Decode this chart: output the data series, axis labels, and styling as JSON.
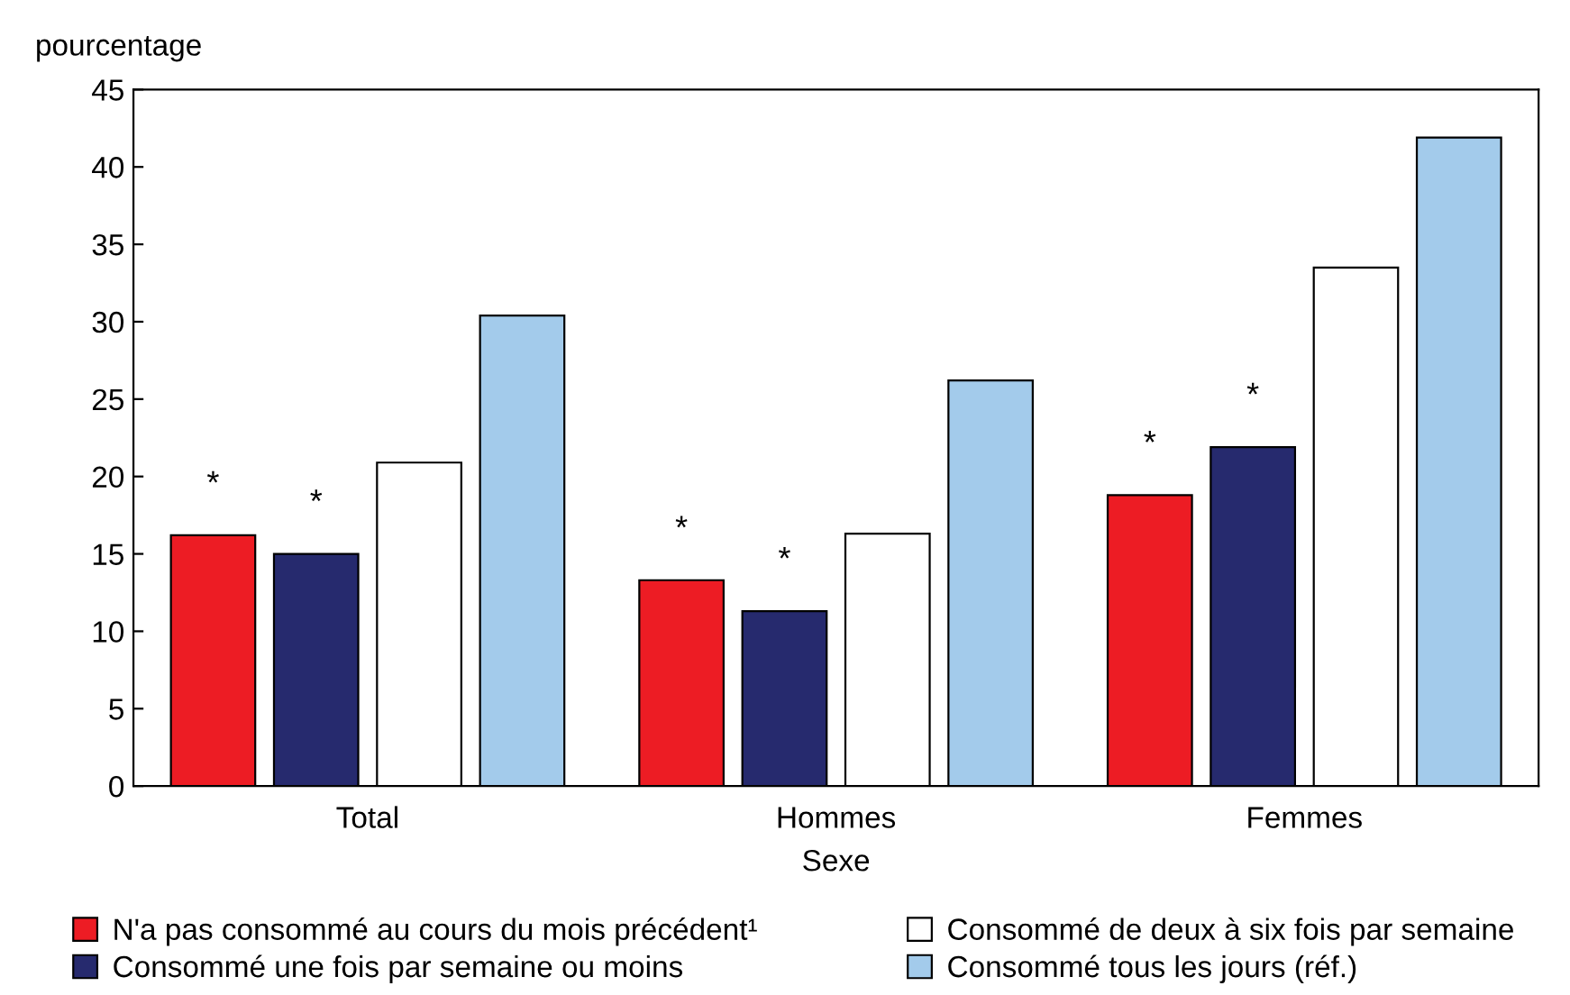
{
  "chart_data": {
    "type": "bar",
    "ylabel": "pourcentage",
    "xlabel": "Sexe",
    "categories": [
      "Total",
      "Hommes",
      "Femmes"
    ],
    "series": [
      {
        "name": "N'a pas consommé au cours du mois précédent¹",
        "color": "#ed1c24",
        "values": [
          16.2,
          13.3,
          18.8
        ],
        "value_labels": [
          "*",
          "*",
          "*"
        ]
      },
      {
        "name": "Consommé une fois par semaine ou moins",
        "color": "#262a6e",
        "values": [
          15.0,
          11.3,
          21.9
        ],
        "value_labels": [
          "*",
          "*",
          "*"
        ]
      },
      {
        "name": "Consommé de deux à six fois par semaine",
        "color": "#ffffff",
        "values": [
          20.9,
          16.3,
          33.5
        ]
      },
      {
        "name": "Consommé tous les jours (réf.)",
        "color": "#a3cbeb",
        "values": [
          30.4,
          26.2,
          41.9
        ]
      }
    ],
    "ylim": [
      0,
      45
    ],
    "yticks": [
      0,
      5,
      10,
      15,
      20,
      25,
      30,
      35,
      40,
      45
    ],
    "grid": false,
    "legend": "bottom"
  }
}
